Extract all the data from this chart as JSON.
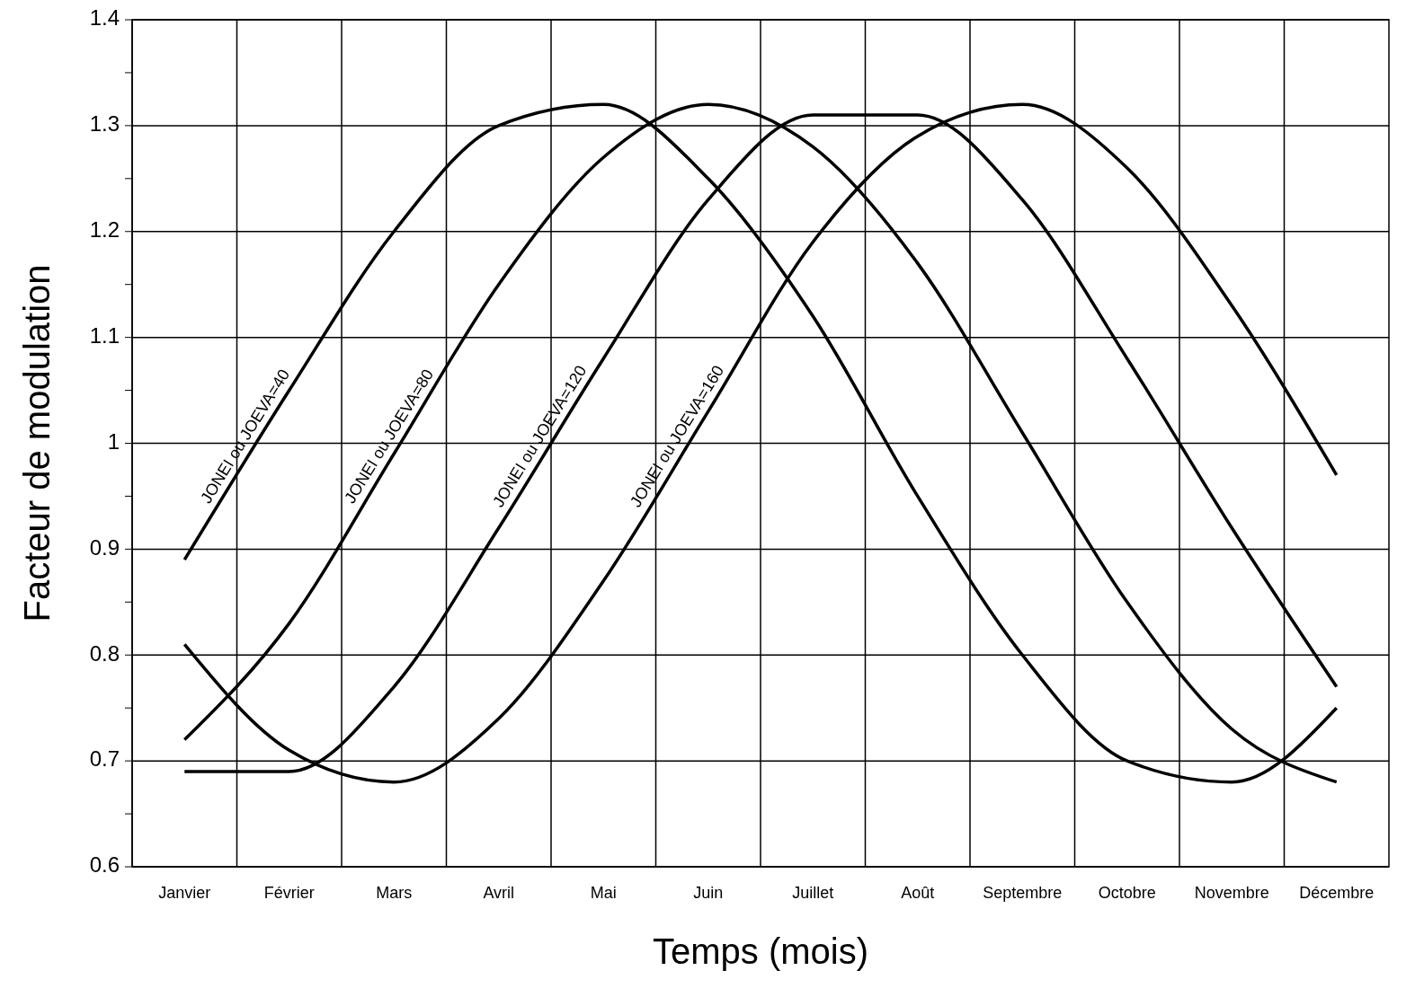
{
  "chart_data": {
    "type": "line",
    "xlabel": "Temps (mois)",
    "ylabel": "Facteur de modulation",
    "categories": [
      "Janvier",
      "Février",
      "Mars",
      "Avril",
      "Mai",
      "Juin",
      "Juillet",
      "Août",
      "Septembre",
      "Octobre",
      "Novembre",
      "Décembre"
    ],
    "series": [
      {
        "name": "JONEI ou JOEVA=40",
        "color": "#000000",
        "values": [
          0.89,
          1.05,
          1.2,
          1.3,
          1.32,
          1.25,
          1.12,
          0.95,
          0.8,
          0.7,
          0.68,
          0.75
        ]
      },
      {
        "name": "JONEI ou JOEVA=80",
        "color": "#000000",
        "values": [
          0.72,
          0.83,
          0.99,
          1.15,
          1.27,
          1.32,
          1.28,
          1.17,
          1.01,
          0.85,
          0.73,
          0.68
        ]
      },
      {
        "name": "JONEI ou JOEVA=120",
        "color": "#000000",
        "values": [
          0.69,
          0.69,
          0.77,
          0.92,
          1.08,
          1.23,
          1.31,
          1.31,
          1.23,
          1.08,
          0.92,
          0.77
        ]
      },
      {
        "name": "JONEI ou JOEVA=160",
        "color": "#000000",
        "values": [
          0.81,
          0.71,
          0.68,
          0.74,
          0.87,
          1.03,
          1.19,
          1.29,
          1.32,
          1.26,
          1.13,
          0.97
        ]
      }
    ],
    "ylim": [
      0.6,
      1.4
    ],
    "yticks": [
      0.6,
      {
        "value": 0.65,
        "label": null
      },
      0.7,
      {
        "value": 0.75,
        "label": null
      },
      0.8,
      {
        "value": 0.85,
        "label": null
      },
      0.9,
      {
        "value": 0.95,
        "label": null
      },
      1,
      {
        "value": 1.05,
        "label": null
      },
      1.1,
      {
        "value": 1.15,
        "label": null
      },
      1.2,
      {
        "value": 1.25,
        "label": null
      },
      1.3,
      {
        "value": 1.35,
        "label": null
      },
      1.4
    ],
    "grid": true,
    "legend": false,
    "marker": "none",
    "line_style": "solid"
  }
}
